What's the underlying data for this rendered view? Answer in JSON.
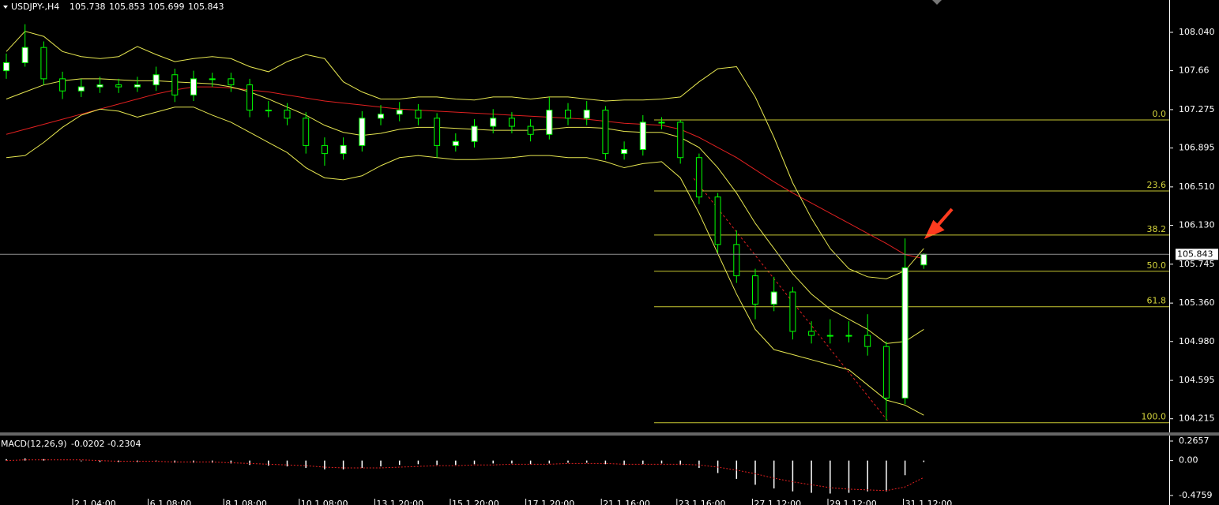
{
  "chart_data": {
    "type": "candlestick",
    "title": "USDJPY-,H4",
    "ylim": [
      104.08,
      108.36
    ],
    "yticks": [
      {
        "value": 108.04,
        "label": "108.040"
      },
      107.66,
      107.275,
      106.895,
      {
        "value": 106.51,
        "label": "106.510"
      },
      {
        "value": 106.13,
        "label": "106.130"
      },
      105.745,
      {
        "value": 105.36,
        "label": "105.360"
      },
      {
        "value": 104.98,
        "label": "104.980"
      },
      104.595,
      104.215
    ],
    "candles": {
      "open": [
        107.66,
        107.74,
        107.89,
        107.58,
        107.46,
        107.5,
        107.52,
        107.5,
        107.52,
        107.62,
        107.42,
        107.58,
        107.58,
        107.52,
        107.27,
        107.27,
        107.19,
        106.92,
        106.84,
        106.92,
        107.19,
        107.23,
        107.27,
        107.19,
        106.92,
        106.96,
        107.11,
        107.19,
        107.11,
        107.03,
        107.27,
        107.19,
        107.27,
        106.84,
        106.88,
        107.15,
        107.15,
        106.8,
        106.41,
        105.94,
        105.63,
        105.35,
        105.47,
        105.08,
        105.04,
        105.04,
        105.04,
        104.93,
        104.42,
        105.738
      ],
      "high": [
        107.83,
        108.12,
        107.95,
        107.65,
        107.58,
        107.6,
        107.58,
        107.6,
        107.7,
        107.68,
        107.66,
        107.64,
        107.64,
        107.58,
        107.36,
        107.34,
        107.25,
        107.0,
        107.0,
        107.26,
        107.32,
        107.35,
        107.33,
        107.24,
        107.04,
        107.18,
        107.28,
        107.25,
        107.18,
        107.4,
        107.34,
        107.36,
        107.31,
        106.96,
        107.22,
        107.2,
        107.17,
        106.84,
        106.45,
        106.08,
        105.7,
        105.62,
        105.52,
        105.18,
        105.2,
        105.18,
        105.25,
        104.98,
        106.0,
        105.853
      ],
      "low": [
        107.58,
        107.7,
        107.52,
        107.38,
        107.4,
        107.44,
        107.44,
        107.45,
        107.46,
        107.35,
        107.36,
        107.5,
        107.45,
        107.2,
        107.2,
        107.12,
        106.84,
        106.72,
        106.78,
        106.86,
        107.12,
        107.16,
        107.12,
        106.8,
        106.86,
        106.9,
        107.04,
        107.04,
        106.96,
        106.98,
        107.12,
        107.12,
        106.78,
        106.78,
        106.82,
        107.08,
        106.74,
        106.34,
        105.86,
        105.56,
        105.2,
        105.28,
        105.0,
        104.96,
        104.96,
        104.97,
        104.84,
        104.2,
        104.36,
        105.699
      ],
      "close": [
        107.74,
        107.89,
        107.58,
        107.46,
        107.5,
        107.52,
        107.5,
        107.52,
        107.62,
        107.42,
        107.58,
        107.58,
        107.52,
        107.27,
        107.27,
        107.19,
        106.92,
        106.84,
        106.92,
        107.19,
        107.23,
        107.27,
        107.19,
        106.92,
        106.96,
        107.11,
        107.19,
        107.11,
        107.03,
        107.27,
        107.19,
        107.27,
        106.84,
        106.88,
        107.15,
        107.15,
        106.8,
        106.41,
        105.94,
        105.63,
        105.35,
        105.47,
        105.08,
        105.04,
        105.04,
        105.04,
        104.93,
        104.42,
        105.71,
        105.843
      ]
    },
    "up_color": "#00ff00",
    "down_color": "#00ff00",
    "lines": [
      {
        "color": "#e02020",
        "values": [
          107.03,
          107.08,
          107.13,
          107.18,
          107.23,
          107.28,
          107.33,
          107.38,
          107.43,
          107.47,
          107.5,
          107.5,
          107.49,
          107.47,
          107.45,
          107.42,
          107.39,
          107.36,
          107.34,
          107.32,
          107.3,
          107.28,
          107.27,
          107.26,
          107.25,
          107.24,
          107.23,
          107.22,
          107.21,
          107.2,
          107.19,
          107.18,
          107.16,
          107.14,
          107.13,
          107.12,
          107.08,
          107.0,
          106.9,
          106.8,
          106.68,
          106.56,
          106.45,
          106.35,
          106.25,
          106.15,
          106.05,
          105.95,
          105.84,
          105.8
        ]
      },
      {
        "color": "#e6e650",
        "values": [
          107.85,
          108.05,
          108.0,
          107.85,
          107.8,
          107.78,
          107.8,
          107.9,
          107.82,
          107.75,
          107.78,
          107.8,
          107.78,
          107.7,
          107.65,
          107.75,
          107.82,
          107.78,
          107.55,
          107.45,
          107.38,
          107.38,
          107.4,
          107.4,
          107.38,
          107.37,
          107.4,
          107.4,
          107.38,
          107.4,
          107.4,
          107.38,
          107.36,
          107.37,
          107.37,
          107.38,
          107.4,
          107.55,
          107.68,
          107.7,
          107.4,
          107.0,
          106.55,
          106.2,
          105.9,
          105.7,
          105.62,
          105.6,
          105.68,
          105.9
        ]
      },
      {
        "color": "#e6e650",
        "values": [
          107.38,
          107.45,
          107.52,
          107.56,
          107.58,
          107.58,
          107.57,
          107.56,
          107.56,
          107.55,
          107.54,
          107.53,
          107.5,
          107.45,
          107.38,
          107.3,
          107.22,
          107.12,
          107.05,
          107.02,
          107.04,
          107.08,
          107.1,
          107.1,
          107.09,
          107.08,
          107.07,
          107.07,
          107.07,
          107.08,
          107.1,
          107.1,
          107.09,
          107.06,
          107.05,
          107.05,
          107.0,
          106.9,
          106.7,
          106.45,
          106.15,
          105.9,
          105.65,
          105.45,
          105.3,
          105.2,
          105.1,
          104.96,
          104.98,
          105.1
        ]
      },
      {
        "color": "#e6e650",
        "values": [
          106.8,
          106.82,
          106.95,
          107.1,
          107.22,
          107.28,
          107.26,
          107.2,
          107.25,
          107.3,
          107.3,
          107.22,
          107.15,
          107.05,
          106.95,
          106.85,
          106.7,
          106.6,
          106.58,
          106.62,
          106.72,
          106.8,
          106.82,
          106.8,
          106.78,
          106.78,
          106.79,
          106.8,
          106.82,
          106.82,
          106.8,
          106.8,
          106.76,
          106.7,
          106.74,
          106.76,
          106.6,
          106.25,
          105.85,
          105.45,
          105.1,
          104.9,
          104.85,
          104.8,
          104.75,
          104.7,
          104.55,
          104.4,
          104.35,
          104.25
        ]
      }
    ],
    "fib_levels": [
      {
        "label": "0.0",
        "price": 107.173
      },
      {
        "label": "23.6",
        "price": 106.47
      },
      {
        "label": "38.2",
        "price": 106.034
      },
      {
        "label": "50.0",
        "price": 105.675
      },
      {
        "label": "61.8",
        "price": 105.324
      },
      {
        "label": "100.0",
        "price": 104.176
      }
    ],
    "x_labels": [
      "2.1 04:00",
      "6.1 08:00",
      "8.1 08:00",
      "10.1 08:00",
      "13.1 20:00",
      "15.1 20:00",
      "17.1 20:00",
      "21.1 16:00",
      "23.1 16:00",
      "27.1 12:00",
      "29.1 12:00",
      "31.1 12:00"
    ],
    "macd": {
      "label": "MACD(12,26,9)",
      "ylim": [
        -0.52,
        0.33
      ],
      "yticks": [
        0.2657,
        {
          "value": 0,
          "label": "0.00"
        },
        -0.4759
      ],
      "hist": [
        0.02,
        0.03,
        0.02,
        0.0,
        -0.01,
        -0.02,
        -0.02,
        -0.02,
        -0.01,
        -0.03,
        -0.03,
        -0.03,
        -0.04,
        -0.06,
        -0.07,
        -0.08,
        -0.1,
        -0.12,
        -0.12,
        -0.1,
        -0.08,
        -0.06,
        -0.05,
        -0.06,
        -0.06,
        -0.05,
        -0.04,
        -0.04,
        -0.05,
        -0.04,
        -0.03,
        -0.03,
        -0.05,
        -0.06,
        -0.05,
        -0.04,
        -0.06,
        -0.1,
        -0.17,
        -0.25,
        -0.33,
        -0.38,
        -0.42,
        -0.44,
        -0.45,
        -0.44,
        -0.42,
        -0.42,
        -0.2,
        -0.0202
      ],
      "signal": [
        0.0,
        0.01,
        0.01,
        0.01,
        0.01,
        0.0,
        -0.01,
        -0.01,
        -0.01,
        -0.02,
        -0.02,
        -0.02,
        -0.03,
        -0.04,
        -0.05,
        -0.06,
        -0.07,
        -0.09,
        -0.1,
        -0.1,
        -0.1,
        -0.09,
        -0.08,
        -0.07,
        -0.07,
        -0.06,
        -0.06,
        -0.05,
        -0.05,
        -0.05,
        -0.04,
        -0.04,
        -0.04,
        -0.05,
        -0.05,
        -0.05,
        -0.05,
        -0.06,
        -0.09,
        -0.13,
        -0.18,
        -0.24,
        -0.29,
        -0.33,
        -0.37,
        -0.39,
        -0.4,
        -0.41,
        -0.36,
        -0.2304
      ],
      "hist_color": "#ffffff",
      "signal_color": "#e02020"
    }
  }
}
